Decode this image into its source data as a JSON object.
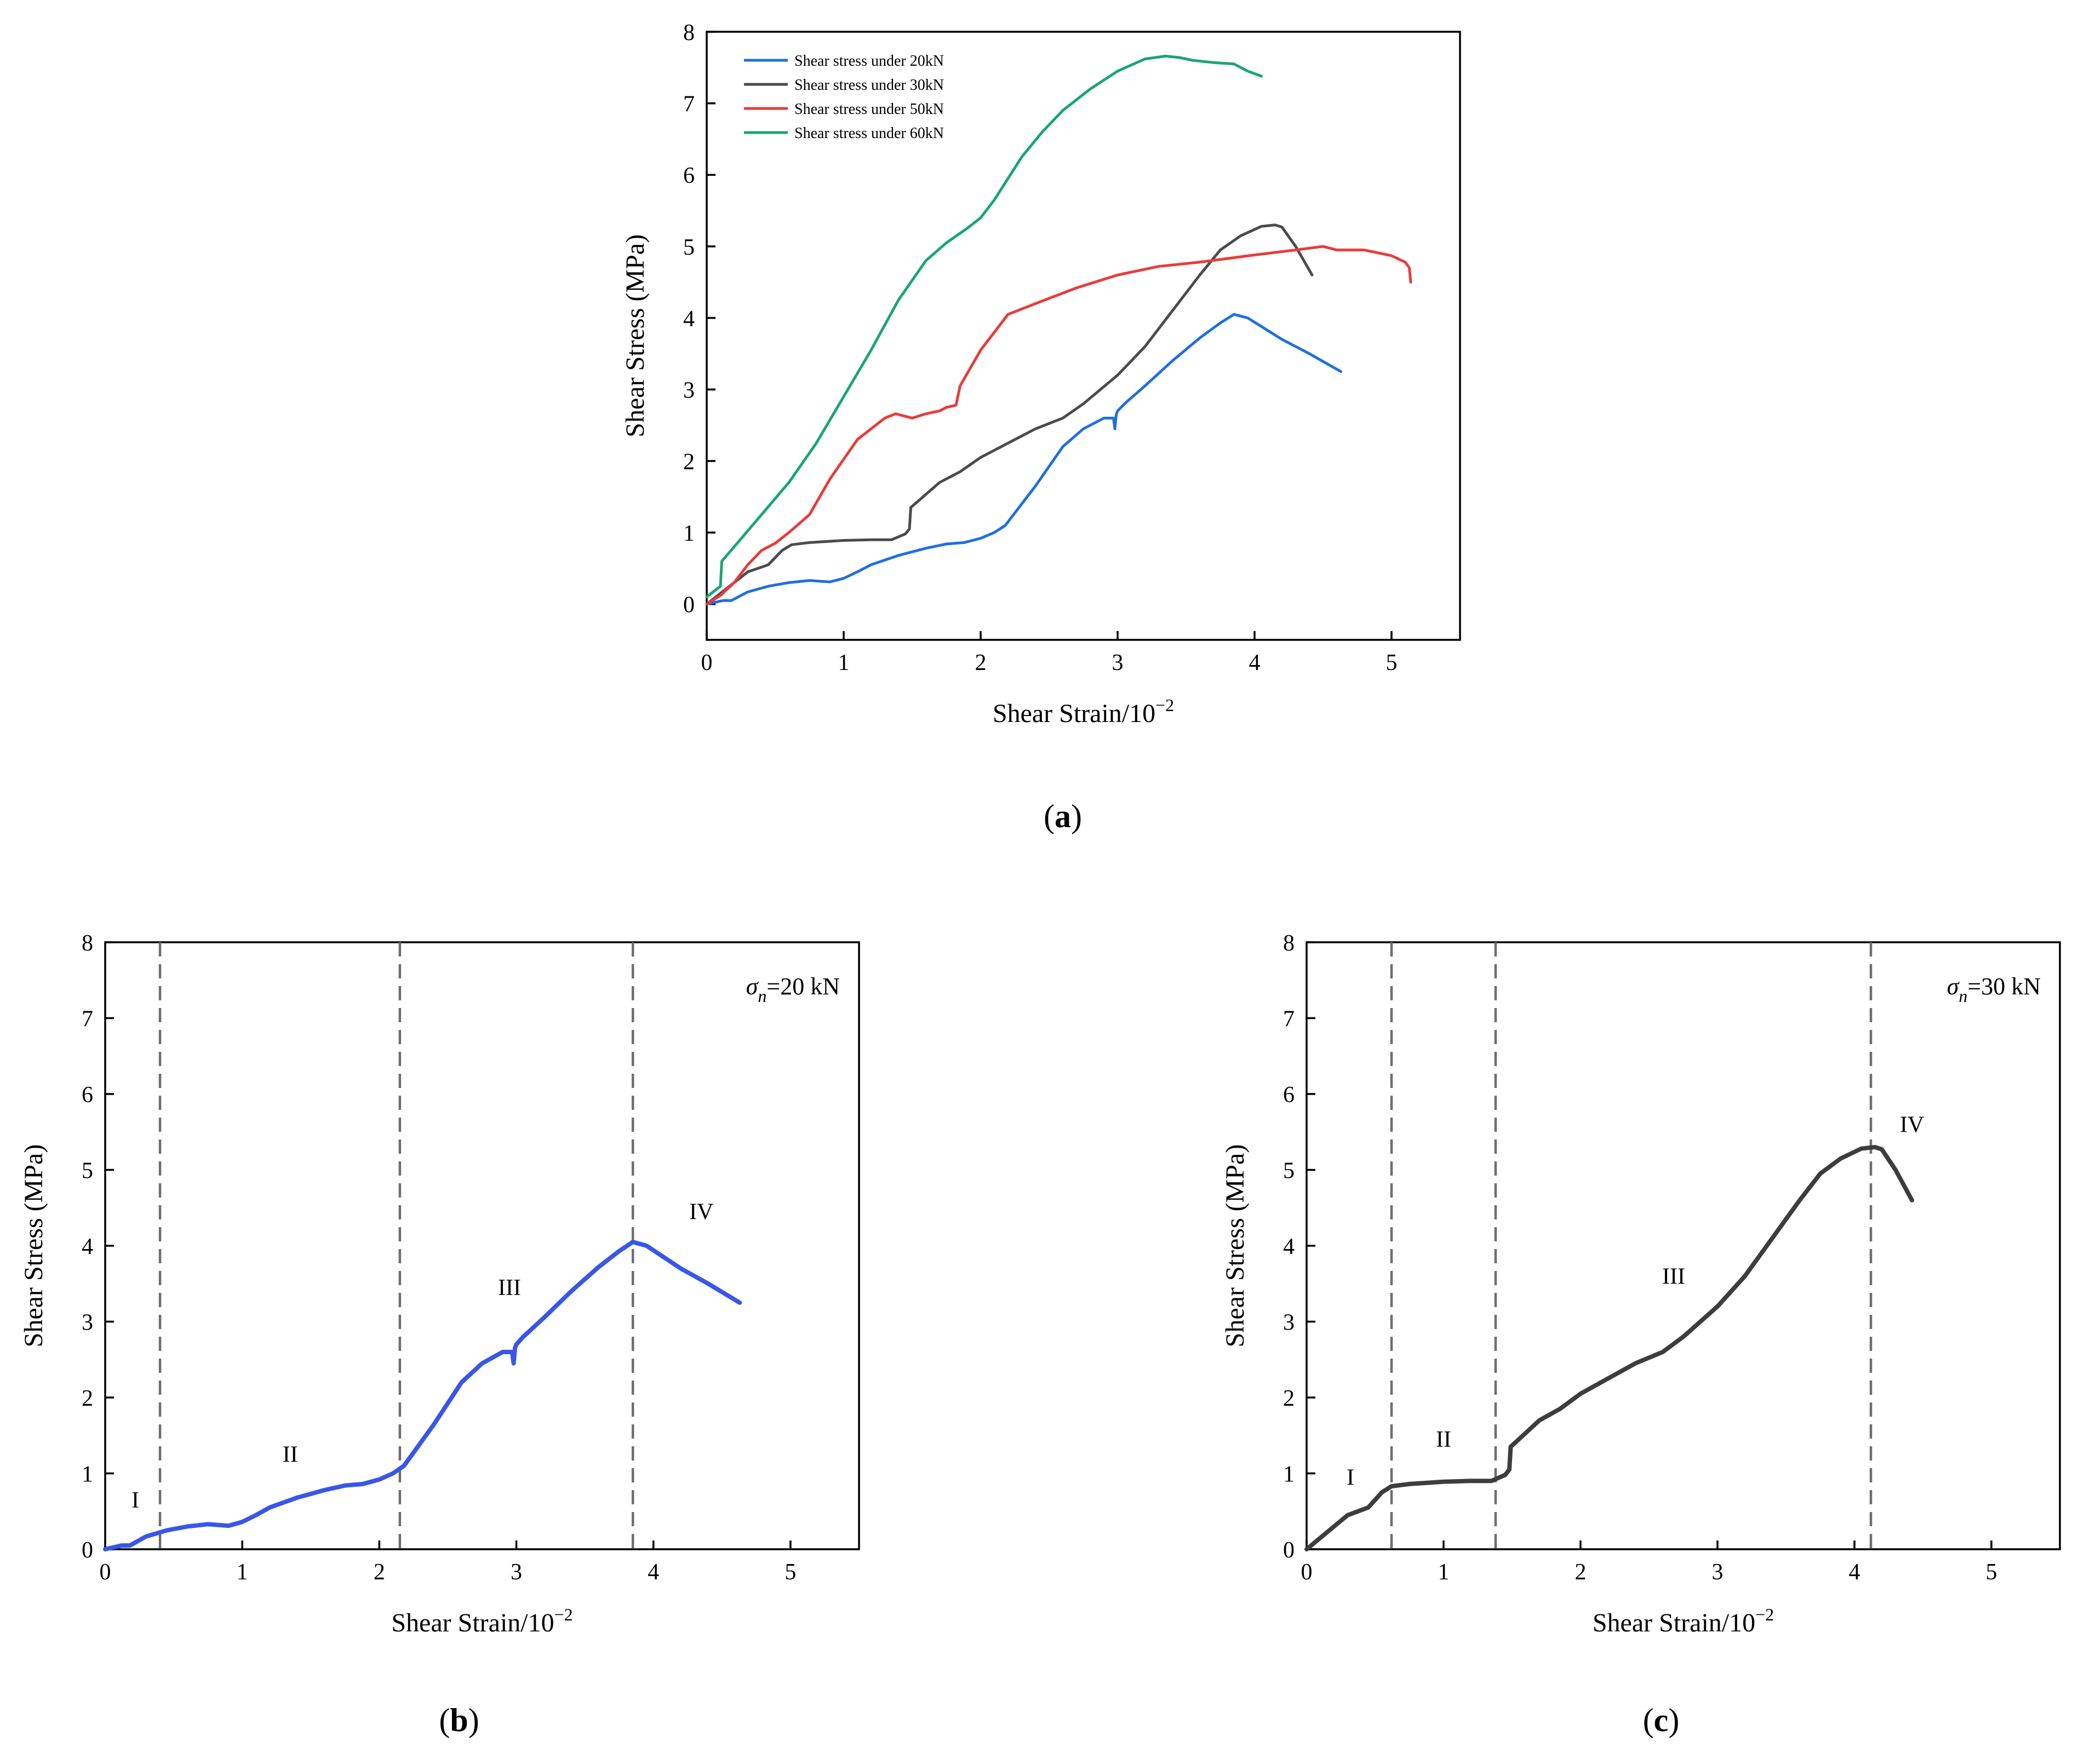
{
  "chart_data": [
    {
      "id": "a",
      "type": "line",
      "panel_label": "a",
      "xlabel": "Shear Strain/10",
      "xlabel_exp": "−2",
      "ylabel": "Shear Stress (MPa)",
      "xlim": [
        0,
        5.5
      ],
      "ylim": [
        -0.5,
        8
      ],
      "xticks": [
        "0",
        "1",
        "2",
        "3",
        "4",
        "5"
      ],
      "yticks": [
        "0",
        "1",
        "2",
        "3",
        "4",
        "5",
        "6",
        "7",
        "8"
      ],
      "legend_position": "top-left",
      "series": [
        {
          "name": "Shear stress under 20kN",
          "color": "#1f6fe0",
          "x": [
            0,
            0.12,
            0.18,
            0.3,
            0.45,
            0.6,
            0.75,
            0.9,
            1.0,
            1.1,
            1.2,
            1.4,
            1.6,
            1.75,
            1.88,
            2.0,
            2.1,
            2.18,
            2.4,
            2.6,
            2.75,
            2.9,
            2.97,
            2.98,
            2.99,
            3.0,
            3.05,
            3.2,
            3.4,
            3.6,
            3.75,
            3.85,
            3.95,
            4.05,
            4.2,
            4.4,
            4.63
          ],
          "y": [
            0,
            0.05,
            0.05,
            0.17,
            0.25,
            0.3,
            0.33,
            0.31,
            0.36,
            0.45,
            0.55,
            0.68,
            0.78,
            0.84,
            0.86,
            0.92,
            1.0,
            1.1,
            1.65,
            2.2,
            2.45,
            2.6,
            2.6,
            2.45,
            2.65,
            2.7,
            2.8,
            3.05,
            3.4,
            3.72,
            3.93,
            4.05,
            4.0,
            3.88,
            3.7,
            3.5,
            3.25
          ]
        },
        {
          "name": "Shear stress under 30kN",
          "color": "#4b4b4b",
          "x": [
            0,
            0.1,
            0.2,
            0.3,
            0.45,
            0.55,
            0.62,
            0.75,
            1.0,
            1.2,
            1.35,
            1.45,
            1.48,
            1.49,
            1.55,
            1.7,
            1.85,
            2.0,
            2.2,
            2.4,
            2.6,
            2.75,
            3.0,
            3.2,
            3.4,
            3.6,
            3.75,
            3.9,
            4.05,
            4.15,
            4.2,
            4.3,
            4.42
          ],
          "y": [
            0,
            0.15,
            0.3,
            0.45,
            0.55,
            0.75,
            0.83,
            0.86,
            0.89,
            0.9,
            0.9,
            0.98,
            1.05,
            1.35,
            1.45,
            1.7,
            1.85,
            2.05,
            2.25,
            2.45,
            2.6,
            2.8,
            3.2,
            3.6,
            4.1,
            4.6,
            4.95,
            5.15,
            5.28,
            5.3,
            5.27,
            5.0,
            4.6
          ]
        },
        {
          "name": "Shear stress under 50kN",
          "color": "#e83c3c",
          "x": [
            0,
            0.1,
            0.2,
            0.3,
            0.4,
            0.5,
            0.6,
            0.75,
            0.9,
            1.1,
            1.3,
            1.38,
            1.5,
            1.6,
            1.7,
            1.75,
            1.82,
            1.85,
            2.0,
            2.2,
            2.4,
            2.7,
            3.0,
            3.3,
            3.6,
            4.0,
            4.3,
            4.5,
            4.6,
            4.8,
            5.0,
            5.1,
            5.13,
            5.14
          ],
          "y": [
            0,
            0.12,
            0.3,
            0.55,
            0.75,
            0.85,
            1.0,
            1.25,
            1.75,
            2.3,
            2.6,
            2.66,
            2.6,
            2.66,
            2.7,
            2.75,
            2.78,
            3.05,
            3.55,
            4.05,
            4.2,
            4.42,
            4.6,
            4.72,
            4.78,
            4.88,
            4.95,
            5.0,
            4.95,
            4.95,
            4.87,
            4.78,
            4.7,
            4.5
          ]
        },
        {
          "name": "Shear stress under 60kN",
          "color": "#1aa672",
          "x": [
            0,
            0.1,
            0.11,
            0.2,
            0.4,
            0.6,
            0.8,
            1.0,
            1.2,
            1.4,
            1.6,
            1.75,
            1.9,
            2.0,
            2.1,
            2.2,
            2.3,
            2.45,
            2.6,
            2.8,
            3.0,
            3.2,
            3.35,
            3.45,
            3.55,
            3.7,
            3.85,
            3.95,
            4.05
          ],
          "y": [
            0.1,
            0.25,
            0.6,
            0.8,
            1.25,
            1.7,
            2.25,
            2.9,
            3.55,
            4.25,
            4.8,
            5.05,
            5.25,
            5.4,
            5.65,
            5.95,
            6.25,
            6.6,
            6.9,
            7.2,
            7.45,
            7.62,
            7.66,
            7.64,
            7.6,
            7.57,
            7.55,
            7.45,
            7.38
          ]
        }
      ]
    },
    {
      "id": "b",
      "type": "line",
      "panel_label": "b",
      "xlabel": "Shear Strain/10",
      "xlabel_exp": "−2",
      "ylabel": "Shear Stress (MPa)",
      "xlim": [
        0,
        5.5
      ],
      "ylim": [
        0,
        8
      ],
      "xticks": [
        "0",
        "1",
        "2",
        "3",
        "4",
        "5"
      ],
      "yticks": [
        "0",
        "1",
        "2",
        "3",
        "4",
        "5",
        "6",
        "7",
        "8"
      ],
      "annotation_sigma": "σ",
      "annotation_sub": "n",
      "annotation_rest": "=20 kN",
      "stage_boundaries": [
        0.4,
        2.15,
        3.85
      ],
      "stages": [
        {
          "label": "I",
          "x": 0.22,
          "y": 0.55
        },
        {
          "label": "II",
          "x": 1.35,
          "y": 1.15
        },
        {
          "label": "III",
          "x": 2.95,
          "y": 3.35
        },
        {
          "label": "IV",
          "x": 4.35,
          "y": 4.35
        }
      ],
      "series": [
        {
          "name": "σn=20 kN",
          "color": "#3857e8",
          "x": [
            0,
            0.12,
            0.18,
            0.3,
            0.45,
            0.6,
            0.75,
            0.9,
            1.0,
            1.1,
            1.2,
            1.4,
            1.6,
            1.75,
            1.88,
            2.0,
            2.1,
            2.18,
            2.4,
            2.6,
            2.75,
            2.9,
            2.97,
            2.98,
            2.99,
            3.0,
            3.05,
            3.2,
            3.4,
            3.6,
            3.75,
            3.85,
            3.95,
            4.05,
            4.2,
            4.4,
            4.63
          ],
          "y": [
            0,
            0.05,
            0.05,
            0.17,
            0.25,
            0.3,
            0.33,
            0.31,
            0.36,
            0.45,
            0.55,
            0.68,
            0.78,
            0.84,
            0.86,
            0.92,
            1.0,
            1.1,
            1.65,
            2.2,
            2.45,
            2.6,
            2.6,
            2.45,
            2.65,
            2.7,
            2.8,
            3.05,
            3.4,
            3.72,
            3.93,
            4.05,
            4.0,
            3.88,
            3.7,
            3.5,
            3.25
          ]
        }
      ]
    },
    {
      "id": "c",
      "type": "line",
      "panel_label": "c",
      "xlabel": "Shear Strain/10",
      "xlabel_exp": "−2",
      "ylabel": "Shear Stress (MPa)",
      "xlim": [
        0,
        5.5
      ],
      "ylim": [
        0,
        8
      ],
      "xticks": [
        "0",
        "1",
        "2",
        "3",
        "4",
        "5"
      ],
      "yticks": [
        "0",
        "1",
        "2",
        "3",
        "4",
        "5",
        "6",
        "7",
        "8"
      ],
      "annotation_sigma": "σ",
      "annotation_sub": "n",
      "annotation_rest": "=30 kN",
      "stage_boundaries": [
        0.62,
        1.38,
        4.12
      ],
      "stages": [
        {
          "label": "I",
          "x": 0.32,
          "y": 0.85
        },
        {
          "label": "II",
          "x": 1.0,
          "y": 1.35
        },
        {
          "label": "III",
          "x": 2.68,
          "y": 3.5
        },
        {
          "label": "IV",
          "x": 4.42,
          "y": 5.5
        }
      ],
      "series": [
        {
          "name": "σn=30 kN",
          "color": "#3d3d3d",
          "x": [
            0,
            0.1,
            0.2,
            0.3,
            0.45,
            0.55,
            0.62,
            0.75,
            1.0,
            1.2,
            1.35,
            1.45,
            1.48,
            1.49,
            1.55,
            1.7,
            1.85,
            2.0,
            2.2,
            2.4,
            2.6,
            2.75,
            3.0,
            3.2,
            3.4,
            3.6,
            3.75,
            3.9,
            4.05,
            4.15,
            4.2,
            4.3,
            4.42
          ],
          "y": [
            0,
            0.15,
            0.3,
            0.45,
            0.55,
            0.75,
            0.83,
            0.86,
            0.89,
            0.9,
            0.9,
            0.98,
            1.05,
            1.35,
            1.45,
            1.7,
            1.85,
            2.05,
            2.25,
            2.45,
            2.6,
            2.8,
            3.2,
            3.6,
            4.1,
            4.6,
            4.95,
            5.15,
            5.28,
            5.3,
            5.27,
            5.0,
            4.6
          ]
        }
      ]
    }
  ]
}
